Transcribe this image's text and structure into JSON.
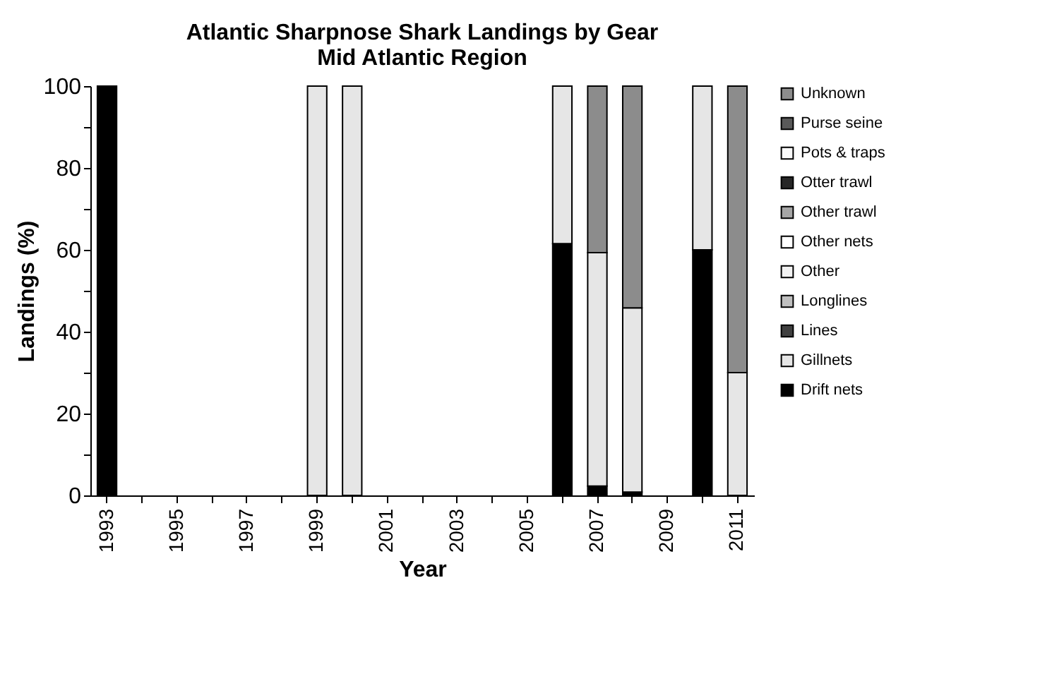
{
  "chart_data": {
    "type": "bar",
    "title": "Atlantic Sharpnose Shark Landings by Gear",
    "subtitle": "Mid Atlantic Region",
    "xlabel": "Year",
    "ylabel": "Landings (%)",
    "categories": [
      "1993",
      null,
      "1995",
      null,
      "1997",
      null,
      "1999",
      null,
      "2001",
      null,
      "2003",
      null,
      "2005",
      null,
      "2007",
      null,
      "2009",
      null,
      "2011"
    ],
    "stacked": true,
    "legend": "right",
    "grid": false,
    "ylim": [
      0,
      100
    ],
    "yticks": [
      0,
      {
        "value": 10,
        "label": null
      },
      20,
      {
        "value": 30,
        "label": null
      },
      40,
      {
        "value": 50,
        "label": null
      },
      60,
      {
        "value": 70,
        "label": null
      },
      80,
      {
        "value": 90,
        "label": null
      },
      100
    ],
    "series": [
      {
        "name": "Drift nets",
        "color": "#000000",
        "values": [
          100,
          null,
          null,
          null,
          null,
          null,
          null,
          null,
          null,
          null,
          null,
          null,
          null,
          61.5,
          2.3,
          0.8,
          null,
          60,
          null
        ]
      },
      {
        "name": "Gillnets",
        "color": "#e6e6e6",
        "values": [
          null,
          null,
          null,
          null,
          null,
          null,
          100,
          100,
          null,
          null,
          null,
          null,
          null,
          38.5,
          57,
          45,
          null,
          40,
          30
        ]
      },
      {
        "name": "Lines",
        "color": "#404040",
        "values": [
          null,
          null,
          null,
          null,
          null,
          null,
          null,
          null,
          null,
          null,
          null,
          null,
          null,
          null,
          null,
          null,
          null,
          null,
          null
        ]
      },
      {
        "name": "Longlines",
        "color": "#bfbfbf",
        "values": [
          null,
          null,
          null,
          null,
          null,
          null,
          null,
          null,
          null,
          null,
          null,
          null,
          null,
          null,
          null,
          null,
          null,
          null,
          null
        ]
      },
      {
        "name": "Other",
        "color": "#f2f2f2",
        "values": [
          null,
          null,
          null,
          null,
          null,
          null,
          null,
          null,
          null,
          null,
          null,
          null,
          null,
          null,
          null,
          null,
          null,
          null,
          null
        ]
      },
      {
        "name": "Other nets",
        "color": "#ffffff",
        "values": [
          null,
          null,
          null,
          null,
          null,
          null,
          null,
          null,
          null,
          null,
          null,
          null,
          null,
          null,
          null,
          null,
          null,
          null,
          null
        ]
      },
      {
        "name": "Other trawl",
        "color": "#a6a6a6",
        "values": [
          null,
          null,
          null,
          null,
          null,
          null,
          null,
          null,
          null,
          null,
          null,
          null,
          null,
          null,
          null,
          null,
          null,
          null,
          null
        ]
      },
      {
        "name": "Otter trawl",
        "color": "#262626",
        "values": [
          null,
          null,
          null,
          null,
          null,
          null,
          null,
          null,
          null,
          null,
          null,
          null,
          null,
          null,
          null,
          null,
          null,
          null,
          null
        ]
      },
      {
        "name": "Pots & traps",
        "color": "#fafafa",
        "values": [
          null,
          null,
          null,
          null,
          null,
          null,
          null,
          null,
          null,
          null,
          null,
          null,
          null,
          null,
          null,
          null,
          null,
          null,
          null
        ]
      },
      {
        "name": "Purse seine",
        "color": "#595959",
        "values": [
          null,
          null,
          null,
          null,
          null,
          null,
          null,
          null,
          null,
          null,
          null,
          null,
          null,
          null,
          null,
          null,
          null,
          null,
          null
        ]
      },
      {
        "name": "Unknown",
        "color": "#8c8c8c",
        "values": [
          null,
          null,
          null,
          null,
          null,
          null,
          null,
          null,
          null,
          null,
          null,
          null,
          null,
          null,
          40.7,
          54.2,
          null,
          null,
          70
        ]
      }
    ]
  }
}
